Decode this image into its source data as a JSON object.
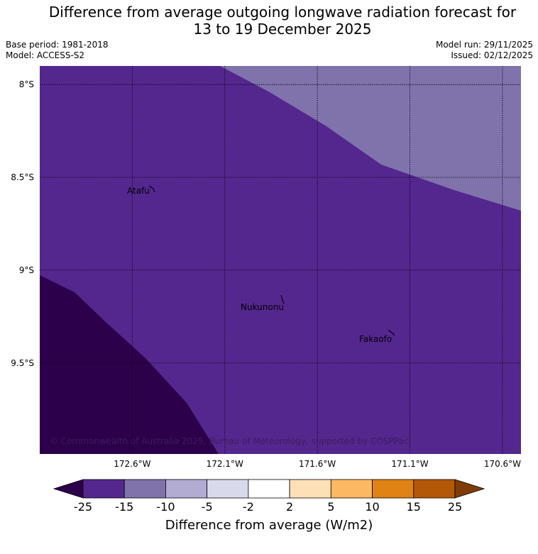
{
  "title": {
    "line1": "Difference from average outgoing longwave radiation forecast for",
    "line2": "13 to 19 December 2025"
  },
  "meta": {
    "base_period": "Base period: 1981-2018",
    "model": "Model: ACCESS-S2",
    "model_run": "Model run: 29/11/2025",
    "issued": "Issued: 02/12/2025"
  },
  "map": {
    "lat_labels": [
      "8°S",
      "8.5°S",
      "9°S",
      "9.5°S"
    ],
    "lat_values": [
      -8.0,
      -8.5,
      -9.0,
      -9.5
    ],
    "lon_labels": [
      "172.6°W",
      "172.1°W",
      "171.6°W",
      "171.1°W",
      "170.6°W"
    ],
    "lon_values": [
      -172.6,
      -172.1,
      -171.6,
      -171.1,
      -170.6
    ],
    "lat_range": [
      -9.99,
      -7.9
    ],
    "lon_range": [
      -173.1,
      -170.5
    ],
    "places": [
      {
        "name": "Atafu",
        "lat": -8.55,
        "lon": -172.5
      },
      {
        "name": "Nukunonu",
        "lat": -9.18,
        "lon": -171.82
      },
      {
        "name": "Fakaofo",
        "lat": -9.37,
        "lon": -171.23
      }
    ],
    "copyright": "© Commonwealth of Australia 2025, Bureau of Meteorology, supported by COSPPac",
    "colors": {
      "band_-25_-15": "#54278f",
      "band_-15_-10": "#8073ac",
      "below_-25": "#2d004b",
      "grid": "#000000"
    }
  },
  "colorbar": {
    "title": "Difference from average (W/m2)",
    "ticks": [
      "-25",
      "-15",
      "-10",
      "-5",
      "-2",
      "2",
      "5",
      "10",
      "15",
      "25"
    ],
    "colors": [
      "#54278f",
      "#8073ac",
      "#b2abd2",
      "#d8daeb",
      "#ffffff",
      "#fee0b6",
      "#fdb863",
      "#e08214",
      "#b35806"
    ],
    "under_color": "#2d004b",
    "over_color": "#7f3b08"
  }
}
